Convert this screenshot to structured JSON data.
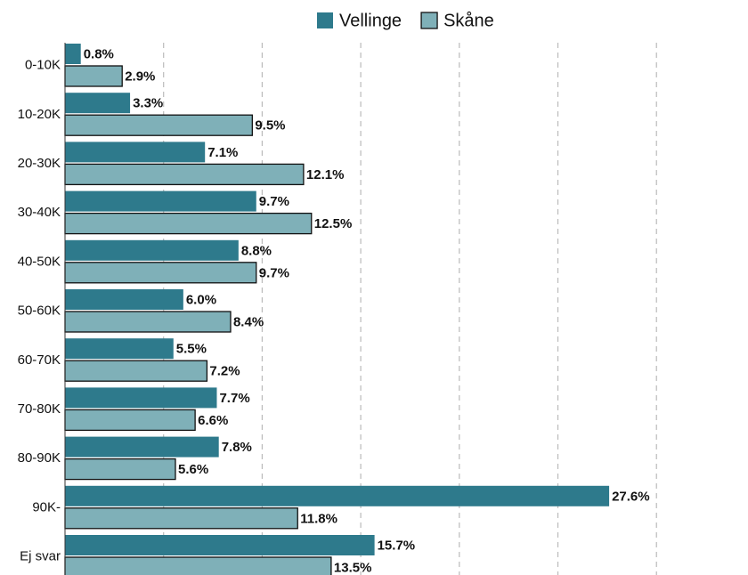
{
  "chart_data": {
    "type": "hbar",
    "categories": [
      "0-10K",
      "10-20K",
      "20-30K",
      "30-40K",
      "40-50K",
      "50-60K",
      "60-70K",
      "70-80K",
      "80-90K",
      "90K-",
      "Ej svar"
    ],
    "series": [
      {
        "name": "Vellinge",
        "color": "#2e7a8c",
        "values": [
          0.8,
          3.3,
          7.1,
          9.7,
          8.8,
          6.0,
          5.5,
          7.7,
          7.8,
          27.6,
          15.7
        ],
        "value_labels": [
          "0.8%",
          "3.3%",
          "7.1%",
          "9.7%",
          "8.8%",
          "6.0%",
          "5.5%",
          "7.7%",
          "7.8%",
          "27.6%",
          "15.7%"
        ]
      },
      {
        "name": "Skåne",
        "color": "#7fb0b8",
        "values": [
          2.9,
          9.5,
          12.1,
          12.5,
          9.7,
          8.4,
          7.2,
          6.6,
          5.6,
          11.8,
          13.5
        ],
        "value_labels": [
          "2.9%",
          "9.5%",
          "12.1%",
          "12.5%",
          "9.7%",
          "8.4%",
          "7.2%",
          "6.6%",
          "5.6%",
          "11.8%",
          "13.5%"
        ]
      }
    ],
    "xlim": [
      0,
      32
    ],
    "xticks": [
      0,
      5,
      10,
      15,
      20,
      25,
      30
    ],
    "grid": true,
    "legend": "top"
  }
}
